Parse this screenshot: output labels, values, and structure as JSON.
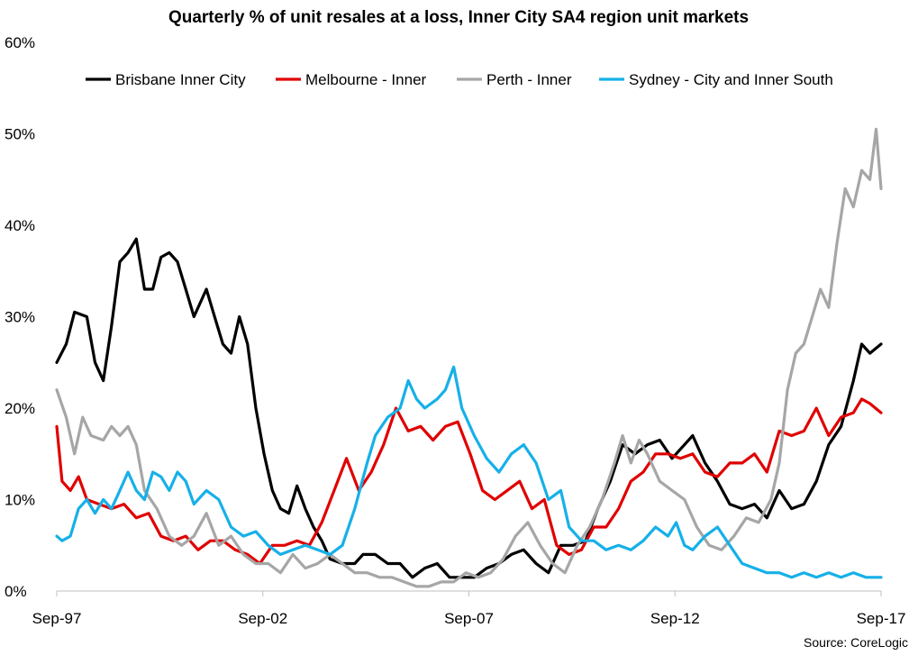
{
  "chart_data": {
    "type": "line",
    "title": "Quarterly % of unit resales at a loss, Inner City SA4 region unit markets",
    "source": "Source: CoreLogic",
    "xlabel": "",
    "ylabel": "",
    "ylim": [
      0,
      60
    ],
    "yticks": [
      "0%",
      "10%",
      "20%",
      "30%",
      "40%",
      "50%",
      "60%"
    ],
    "ytick_values": [
      0,
      10,
      20,
      30,
      40,
      50,
      60
    ],
    "x_start": 1997.67,
    "x_end": 2017.67,
    "xticks": [
      "Sep-97",
      "Sep-02",
      "Sep-07",
      "Sep-12",
      "Sep-17"
    ],
    "xtick_values": [
      1997.67,
      2002.67,
      2007.67,
      2012.67,
      2017.67
    ],
    "legend_position": "top-left",
    "series": [
      {
        "name": "Brisbane Inner City",
        "color": "#000000",
        "points": [
          [
            1997.67,
            25
          ],
          [
            1997.9,
            27
          ],
          [
            1998.1,
            30.5
          ],
          [
            1998.4,
            30
          ],
          [
            1998.6,
            25
          ],
          [
            1998.8,
            23
          ],
          [
            1999.0,
            29
          ],
          [
            1999.2,
            36
          ],
          [
            1999.4,
            37
          ],
          [
            1999.6,
            38.5
          ],
          [
            1999.8,
            33
          ],
          [
            2000.0,
            33
          ],
          [
            2000.2,
            36.5
          ],
          [
            2000.4,
            37
          ],
          [
            2000.6,
            36
          ],
          [
            2000.8,
            33
          ],
          [
            2001.0,
            30
          ],
          [
            2001.3,
            33
          ],
          [
            2001.5,
            30
          ],
          [
            2001.7,
            27
          ],
          [
            2001.9,
            26
          ],
          [
            2002.1,
            30
          ],
          [
            2002.3,
            27
          ],
          [
            2002.5,
            20
          ],
          [
            2002.7,
            15
          ],
          [
            2002.9,
            11
          ],
          [
            2003.1,
            9
          ],
          [
            2003.3,
            8.5
          ],
          [
            2003.5,
            11.5
          ],
          [
            2003.7,
            9
          ],
          [
            2003.9,
            7
          ],
          [
            2004.1,
            5.5
          ],
          [
            2004.3,
            3.5
          ],
          [
            2004.6,
            3
          ],
          [
            2004.9,
            3
          ],
          [
            2005.1,
            4
          ],
          [
            2005.4,
            4
          ],
          [
            2005.7,
            3
          ],
          [
            2006.0,
            3
          ],
          [
            2006.3,
            1.5
          ],
          [
            2006.6,
            2.5
          ],
          [
            2006.9,
            3
          ],
          [
            2007.2,
            1.5
          ],
          [
            2007.5,
            1.5
          ],
          [
            2007.8,
            1.5
          ],
          [
            2008.1,
            2.5
          ],
          [
            2008.4,
            3
          ],
          [
            2008.7,
            4
          ],
          [
            2009.0,
            4.5
          ],
          [
            2009.3,
            3
          ],
          [
            2009.6,
            2
          ],
          [
            2009.9,
            5
          ],
          [
            2010.2,
            5
          ],
          [
            2010.5,
            5.5
          ],
          [
            2010.8,
            9
          ],
          [
            2011.1,
            12
          ],
          [
            2011.4,
            16
          ],
          [
            2011.7,
            15
          ],
          [
            2012.0,
            16
          ],
          [
            2012.3,
            16.5
          ],
          [
            2012.6,
            14.5
          ],
          [
            2012.9,
            16
          ],
          [
            2013.1,
            17
          ],
          [
            2013.4,
            14
          ],
          [
            2013.7,
            12
          ],
          [
            2014.0,
            9.5
          ],
          [
            2014.3,
            9
          ],
          [
            2014.6,
            9.5
          ],
          [
            2014.9,
            8
          ],
          [
            2015.2,
            11
          ],
          [
            2015.5,
            9
          ],
          [
            2015.8,
            9.5
          ],
          [
            2016.1,
            12
          ],
          [
            2016.4,
            16
          ],
          [
            2016.7,
            18
          ],
          [
            2017.0,
            23
          ],
          [
            2017.2,
            27
          ],
          [
            2017.4,
            26
          ],
          [
            2017.67,
            27
          ]
        ]
      },
      {
        "name": "Melbourne - Inner",
        "color": "#e00000",
        "points": [
          [
            1997.67,
            18
          ],
          [
            1997.8,
            12
          ],
          [
            1998.0,
            11
          ],
          [
            1998.2,
            12.5
          ],
          [
            1998.4,
            10
          ],
          [
            1998.7,
            9.5
          ],
          [
            1999.0,
            9
          ],
          [
            1999.3,
            9.5
          ],
          [
            1999.6,
            8
          ],
          [
            1999.9,
            8.5
          ],
          [
            2000.2,
            6
          ],
          [
            2000.5,
            5.5
          ],
          [
            2000.8,
            6
          ],
          [
            2001.1,
            4.5
          ],
          [
            2001.4,
            5.5
          ],
          [
            2001.7,
            5.5
          ],
          [
            2002.0,
            4.5
          ],
          [
            2002.3,
            4
          ],
          [
            2002.6,
            3
          ],
          [
            2002.9,
            5
          ],
          [
            2003.2,
            5
          ],
          [
            2003.5,
            5.5
          ],
          [
            2003.8,
            5
          ],
          [
            2004.1,
            7.5
          ],
          [
            2004.4,
            11
          ],
          [
            2004.7,
            14.5
          ],
          [
            2005.0,
            11
          ],
          [
            2005.3,
            13
          ],
          [
            2005.6,
            16
          ],
          [
            2005.9,
            20
          ],
          [
            2006.2,
            17.5
          ],
          [
            2006.5,
            18
          ],
          [
            2006.8,
            16.5
          ],
          [
            2007.1,
            18
          ],
          [
            2007.4,
            18.5
          ],
          [
            2007.7,
            15
          ],
          [
            2008.0,
            11
          ],
          [
            2008.3,
            10
          ],
          [
            2008.6,
            11
          ],
          [
            2008.9,
            12
          ],
          [
            2009.2,
            9
          ],
          [
            2009.5,
            10
          ],
          [
            2009.8,
            5
          ],
          [
            2010.1,
            4
          ],
          [
            2010.4,
            4.5
          ],
          [
            2010.7,
            7
          ],
          [
            2011.0,
            7
          ],
          [
            2011.3,
            9
          ],
          [
            2011.6,
            12
          ],
          [
            2011.9,
            13
          ],
          [
            2012.2,
            15
          ],
          [
            2012.5,
            15
          ],
          [
            2012.8,
            14.5
          ],
          [
            2013.1,
            15
          ],
          [
            2013.4,
            13
          ],
          [
            2013.7,
            12.5
          ],
          [
            2014.0,
            14
          ],
          [
            2014.3,
            14
          ],
          [
            2014.6,
            15
          ],
          [
            2014.9,
            13
          ],
          [
            2015.2,
            17.5
          ],
          [
            2015.5,
            17
          ],
          [
            2015.8,
            17.5
          ],
          [
            2016.1,
            20
          ],
          [
            2016.4,
            17
          ],
          [
            2016.7,
            19
          ],
          [
            2017.0,
            19.5
          ],
          [
            2017.2,
            21
          ],
          [
            2017.4,
            20.5
          ],
          [
            2017.67,
            19.5
          ]
        ]
      },
      {
        "name": "Perth - Inner",
        "color": "#a6a6a6",
        "points": [
          [
            1997.67,
            22
          ],
          [
            1997.9,
            19
          ],
          [
            1998.1,
            15
          ],
          [
            1998.3,
            19
          ],
          [
            1998.5,
            17
          ],
          [
            1998.8,
            16.5
          ],
          [
            1999.0,
            18
          ],
          [
            1999.2,
            17
          ],
          [
            1999.4,
            18
          ],
          [
            1999.6,
            16
          ],
          [
            1999.8,
            11
          ],
          [
            2000.1,
            9
          ],
          [
            2000.4,
            6
          ],
          [
            2000.7,
            5
          ],
          [
            2001.0,
            6
          ],
          [
            2001.3,
            8.5
          ],
          [
            2001.6,
            5
          ],
          [
            2001.9,
            6
          ],
          [
            2002.2,
            4
          ],
          [
            2002.5,
            3
          ],
          [
            2002.8,
            3
          ],
          [
            2003.1,
            2
          ],
          [
            2003.4,
            4
          ],
          [
            2003.7,
            2.5
          ],
          [
            2004.0,
            3
          ],
          [
            2004.3,
            4
          ],
          [
            2004.6,
            3
          ],
          [
            2004.9,
            2
          ],
          [
            2005.2,
            2
          ],
          [
            2005.5,
            1.5
          ],
          [
            2005.8,
            1.5
          ],
          [
            2006.1,
            1
          ],
          [
            2006.4,
            0.5
          ],
          [
            2006.7,
            0.5
          ],
          [
            2007.0,
            1
          ],
          [
            2007.3,
            1
          ],
          [
            2007.6,
            2
          ],
          [
            2007.9,
            1.5
          ],
          [
            2008.2,
            2
          ],
          [
            2008.5,
            3.5
          ],
          [
            2008.8,
            6
          ],
          [
            2009.1,
            7.5
          ],
          [
            2009.4,
            5
          ],
          [
            2009.7,
            3
          ],
          [
            2010.0,
            2
          ],
          [
            2010.3,
            5
          ],
          [
            2010.6,
            7
          ],
          [
            2010.9,
            10
          ],
          [
            2011.2,
            14
          ],
          [
            2011.4,
            17
          ],
          [
            2011.6,
            14
          ],
          [
            2011.8,
            16.5
          ],
          [
            2012.0,
            15
          ],
          [
            2012.3,
            12
          ],
          [
            2012.6,
            11
          ],
          [
            2012.9,
            10
          ],
          [
            2013.2,
            7
          ],
          [
            2013.5,
            5
          ],
          [
            2013.8,
            4.5
          ],
          [
            2014.1,
            6
          ],
          [
            2014.4,
            8
          ],
          [
            2014.7,
            7.5
          ],
          [
            2015.0,
            10
          ],
          [
            2015.2,
            14
          ],
          [
            2015.4,
            22
          ],
          [
            2015.6,
            26
          ],
          [
            2015.8,
            27
          ],
          [
            2016.0,
            30
          ],
          [
            2016.2,
            33
          ],
          [
            2016.4,
            31
          ],
          [
            2016.6,
            38
          ],
          [
            2016.8,
            44
          ],
          [
            2017.0,
            42
          ],
          [
            2017.2,
            46
          ],
          [
            2017.4,
            45
          ],
          [
            2017.55,
            50.5
          ],
          [
            2017.67,
            44
          ]
        ]
      },
      {
        "name": "Sydney - City and Inner South",
        "color": "#16b0e8",
        "points": [
          [
            1997.67,
            6
          ],
          [
            1997.8,
            5.5
          ],
          [
            1998.0,
            6
          ],
          [
            1998.2,
            9
          ],
          [
            1998.4,
            10
          ],
          [
            1998.6,
            8.5
          ],
          [
            1998.8,
            10
          ],
          [
            1999.0,
            9
          ],
          [
            1999.2,
            11
          ],
          [
            1999.4,
            13
          ],
          [
            1999.6,
            11
          ],
          [
            1999.8,
            10
          ],
          [
            2000.0,
            13
          ],
          [
            2000.2,
            12.5
          ],
          [
            2000.4,
            11
          ],
          [
            2000.6,
            13
          ],
          [
            2000.8,
            12
          ],
          [
            2001.0,
            9.5
          ],
          [
            2001.3,
            11
          ],
          [
            2001.6,
            10
          ],
          [
            2001.9,
            7
          ],
          [
            2002.2,
            6
          ],
          [
            2002.5,
            6.5
          ],
          [
            2002.8,
            5
          ],
          [
            2003.1,
            4
          ],
          [
            2003.4,
            4.5
          ],
          [
            2003.7,
            5
          ],
          [
            2004.0,
            4.5
          ],
          [
            2004.3,
            4
          ],
          [
            2004.6,
            5
          ],
          [
            2004.9,
            9
          ],
          [
            2005.2,
            14
          ],
          [
            2005.4,
            17
          ],
          [
            2005.7,
            19
          ],
          [
            2006.0,
            20
          ],
          [
            2006.2,
            23
          ],
          [
            2006.4,
            21
          ],
          [
            2006.6,
            20
          ],
          [
            2006.9,
            21
          ],
          [
            2007.1,
            22
          ],
          [
            2007.3,
            24.5
          ],
          [
            2007.5,
            20
          ],
          [
            2007.8,
            17
          ],
          [
            2008.1,
            14.5
          ],
          [
            2008.4,
            13
          ],
          [
            2008.7,
            15
          ],
          [
            2009.0,
            16
          ],
          [
            2009.3,
            14
          ],
          [
            2009.6,
            10
          ],
          [
            2009.9,
            11
          ],
          [
            2010.1,
            7
          ],
          [
            2010.4,
            5.5
          ],
          [
            2010.7,
            5.5
          ],
          [
            2011.0,
            4.5
          ],
          [
            2011.3,
            5
          ],
          [
            2011.6,
            4.5
          ],
          [
            2011.9,
            5.5
          ],
          [
            2012.2,
            7
          ],
          [
            2012.5,
            6
          ],
          [
            2012.7,
            7.5
          ],
          [
            2012.9,
            5
          ],
          [
            2013.1,
            4.5
          ],
          [
            2013.4,
            6
          ],
          [
            2013.7,
            7
          ],
          [
            2014.0,
            5
          ],
          [
            2014.3,
            3
          ],
          [
            2014.6,
            2.5
          ],
          [
            2014.9,
            2
          ],
          [
            2015.2,
            2
          ],
          [
            2015.5,
            1.5
          ],
          [
            2015.8,
            2
          ],
          [
            2016.1,
            1.5
          ],
          [
            2016.4,
            2
          ],
          [
            2016.7,
            1.5
          ],
          [
            2017.0,
            2
          ],
          [
            2017.3,
            1.5
          ],
          [
            2017.67,
            1.5
          ]
        ]
      }
    ]
  }
}
